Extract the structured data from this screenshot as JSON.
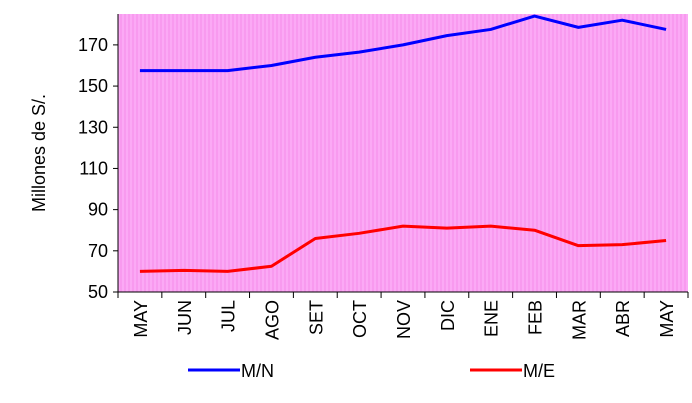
{
  "chart_data": {
    "type": "line",
    "y_label": "Millones de S/.",
    "categories": [
      "MAY",
      "JUN",
      "JUL",
      "AGO",
      "SET",
      "OCT",
      "NOV",
      "DIC",
      "ENE",
      "FEB",
      "MAR",
      "ABR",
      "MAY"
    ],
    "series": [
      {
        "name": "M/N",
        "color": "#0000ff",
        "values": [
          157.5,
          157.5,
          157.5,
          160,
          164,
          166.5,
          170,
          174.5,
          177.5,
          184,
          178.5,
          182,
          177.5
        ]
      },
      {
        "name": "M/E",
        "color": "#ff0000",
        "values": [
          60,
          60.5,
          60,
          62.5,
          76,
          78.5,
          82,
          81,
          82,
          80,
          72.5,
          73,
          75
        ]
      }
    ],
    "ylim": [
      50,
      185
    ],
    "yticks": [
      50,
      70,
      90,
      110,
      130,
      150,
      170
    ]
  }
}
